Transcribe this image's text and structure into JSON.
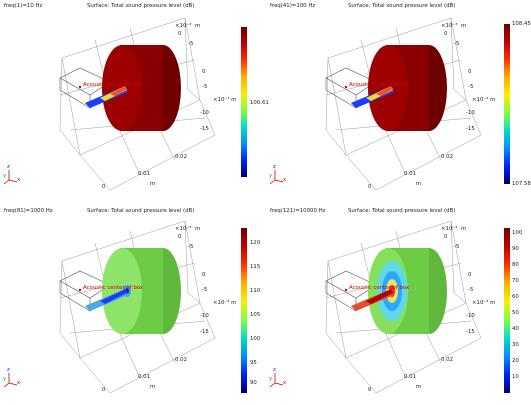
{
  "units": {
    "axis_m": "m",
    "axis_e3": "×10⁻³ m",
    "axis_sup": "×10⁻³",
    "axis_m_small": "m"
  },
  "ticks": {
    "depth": [
      "0",
      "-5",
      "-10",
      "-15"
    ],
    "right_top": "-5",
    "z_side": [
      "5",
      "0",
      "-5",
      "-10",
      "-15"
    ],
    "x_bottom": [
      "0",
      "0.01",
      "0.02"
    ],
    "depth_top": "0"
  },
  "callout_label": "Acoustic center of box",
  "axes_triad": {
    "x": "x",
    "y": "y",
    "z": "z"
  },
  "chart_data": [
    {
      "type": "surface",
      "freq_label": "freq(1)=10 Hz",
      "title": "Surface: Total sound pressure level (dB)",
      "colorbar": {
        "ticks": [
          "100.61"
        ]
      },
      "disk_color": "#8a0000"
    },
    {
      "type": "surface",
      "freq_label": "freq(41)=100 Hz",
      "title": "Surface: Total sound pressure level (dB)",
      "colorbar": {
        "ticks": [
          "108.45",
          "107.58"
        ]
      },
      "disk_color": "#8a0000"
    },
    {
      "type": "surface",
      "freq_label": "freq(81)=1000 Hz",
      "title": "Surface: Total sound pressure level (dB)",
      "colorbar": {
        "ticks": [
          "120",
          "115",
          "110",
          "105",
          "100",
          "95",
          "90"
        ]
      },
      "disk_color": "#86e35c"
    },
    {
      "type": "surface",
      "freq_label": "freq(121)=10000 Hz",
      "title": "Surface: Total sound pressure level (dB)",
      "colorbar": {
        "ticks": [
          "100",
          "90",
          "80",
          "70",
          "60",
          "50",
          "40",
          "30",
          "20",
          "10"
        ]
      },
      "disk_color": "#7fdd5a"
    }
  ]
}
